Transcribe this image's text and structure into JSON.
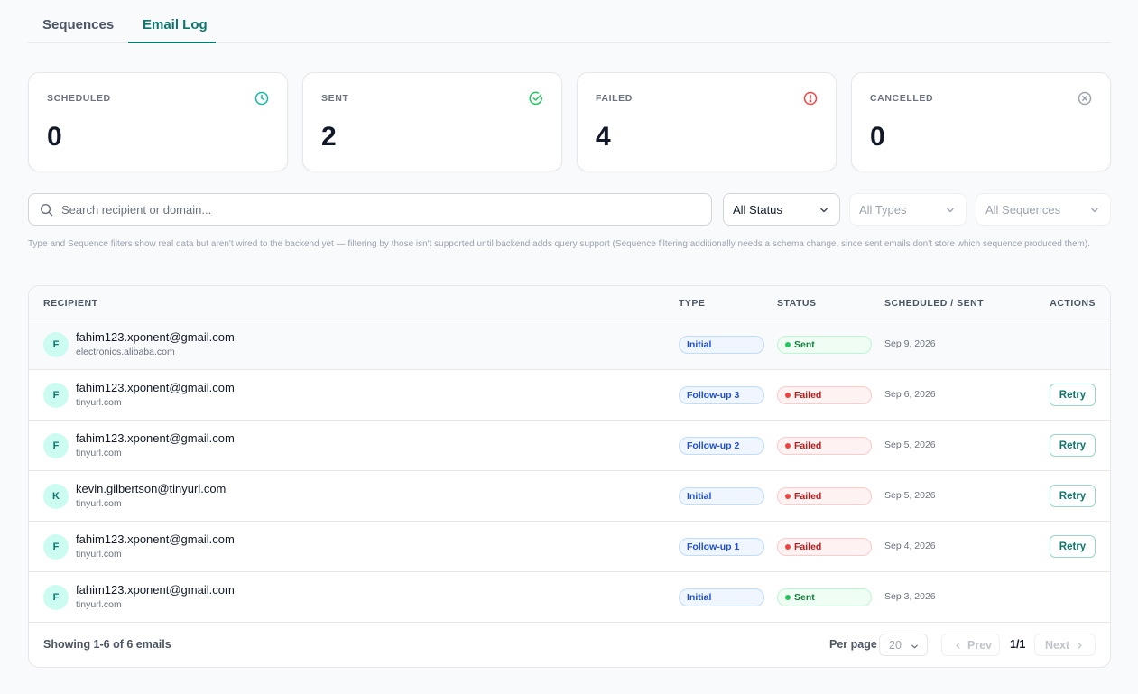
{
  "tabs": [
    {
      "label": "Sequences",
      "active": false
    },
    {
      "label": "Email Log",
      "active": true
    }
  ],
  "stats": [
    {
      "label": "SCHEDULED",
      "value": "0",
      "icon": "clock-icon",
      "color": "#14b8a6"
    },
    {
      "label": "SENT",
      "value": "2",
      "icon": "check-circle-icon",
      "color": "#22c55e"
    },
    {
      "label": "FAILED",
      "value": "4",
      "icon": "alert-circle-icon",
      "color": "#ef4444"
    },
    {
      "label": "CANCELLED",
      "value": "0",
      "icon": "x-circle-icon",
      "color": "#9ca3af"
    }
  ],
  "search": {
    "placeholder": "Search recipient or domain...",
    "value": ""
  },
  "filters": {
    "status": "All Status",
    "types": "All Types",
    "sequences": "All Sequences"
  },
  "note": "Type and Sequence filters show real data but aren't wired to the backend yet — filtering by those isn't supported until backend adds query support (Sequence filtering additionally needs a schema change, since sent emails don't store which sequence produced them).",
  "table": {
    "columns": [
      "RECIPIENT",
      "TYPE",
      "STATUS",
      "SCHEDULED / SENT",
      "ACTIONS"
    ],
    "rows": [
      {
        "initial": "F",
        "email": "fahim123.xponent@gmail.com",
        "domain": "electronics.alibaba.com",
        "type": "Initial",
        "status": "Sent",
        "date": "Sep 9, 2026",
        "action": ""
      },
      {
        "initial": "F",
        "email": "fahim123.xponent@gmail.com",
        "domain": "tinyurl.com",
        "type": "Follow-up 3",
        "status": "Failed",
        "date": "Sep 6, 2026",
        "action": "Retry"
      },
      {
        "initial": "F",
        "email": "fahim123.xponent@gmail.com",
        "domain": "tinyurl.com",
        "type": "Follow-up 2",
        "status": "Failed",
        "date": "Sep 5, 2026",
        "action": "Retry"
      },
      {
        "initial": "K",
        "email": "kevin.gilbertson@tinyurl.com",
        "domain": "tinyurl.com",
        "type": "Initial",
        "status": "Failed",
        "date": "Sep 5, 2026",
        "action": "Retry"
      },
      {
        "initial": "F",
        "email": "fahim123.xponent@gmail.com",
        "domain": "tinyurl.com",
        "type": "Follow-up 1",
        "status": "Failed",
        "date": "Sep 4, 2026",
        "action": "Retry"
      },
      {
        "initial": "F",
        "email": "fahim123.xponent@gmail.com",
        "domain": "tinyurl.com",
        "type": "Initial",
        "status": "Sent",
        "date": "Sep 3, 2026",
        "action": ""
      }
    ]
  },
  "footer": {
    "showing": "Showing 1-6 of 6 emails",
    "per_page_label": "Per page",
    "per_page_value": "20",
    "prev": "Prev",
    "page": "1/1",
    "next": "Next"
  }
}
